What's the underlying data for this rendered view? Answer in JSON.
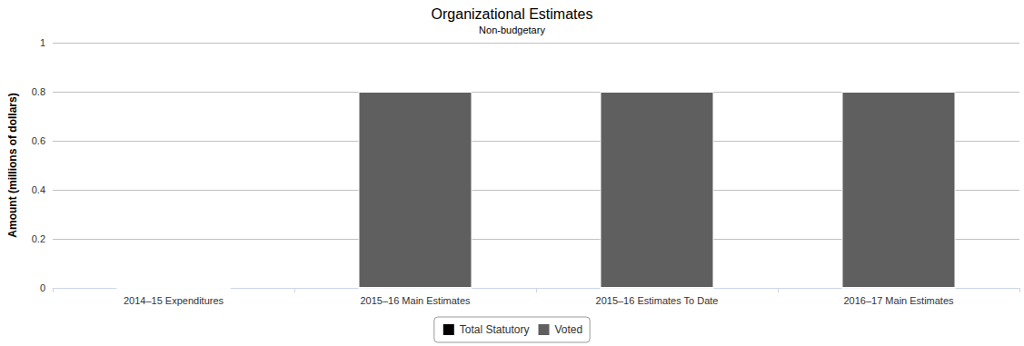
{
  "chart_data": {
    "type": "bar",
    "title": "Organizational Estimates",
    "subtitle": "Non-budgetary",
    "y_label": "Amount (millions of dollars)",
    "categories": [
      "2014–15 Expenditures",
      "2015–16 Main Estimates",
      "2015–16 Estimates To Date",
      "2016–17 Main Estimates"
    ],
    "series": [
      {
        "name": "Total Statutory",
        "color": "#000000",
        "values": [
          0,
          0,
          0,
          0
        ]
      },
      {
        "name": "Voted",
        "color": "#5f5f5f",
        "values": [
          0,
          0.8,
          0.8,
          0.8
        ]
      }
    ],
    "ylim": [
      0,
      1
    ],
    "yticks": [
      0,
      0.2,
      0.4,
      0.6,
      0.8,
      1
    ],
    "stacked": true,
    "grid": true,
    "legend": "bottom"
  }
}
